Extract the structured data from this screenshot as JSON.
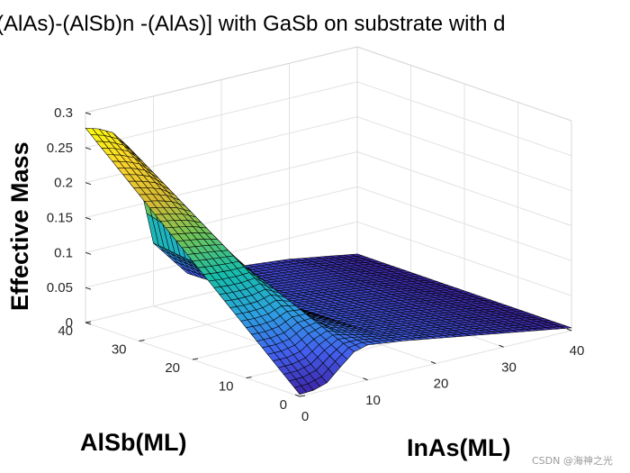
{
  "chart_data": {
    "type": "surface",
    "title": "(AlAs)-(AlSb)n -(AlAs)] with GaSb on substrate with d",
    "xlabel": "InAs(ML)",
    "ylabel": "AlSb(ML)",
    "zlabel": "Effective Mass",
    "xlim": [
      0,
      40
    ],
    "ylim": [
      0,
      40
    ],
    "zlim": [
      0,
      0.3
    ],
    "xticks": [
      "0",
      "10",
      "20",
      "30",
      "40"
    ],
    "yticks": [
      "0",
      "10",
      "20",
      "30",
      "40"
    ],
    "zticks": [
      "0",
      "0.05",
      "0.1",
      "0.15",
      "0.2",
      "0.25",
      "0.3"
    ],
    "grid": true,
    "colormap": "parula",
    "colormap_stops": [
      "#3e26a8",
      "#4361ee",
      "#2da1df",
      "#16bdab",
      "#6fc45a",
      "#d7ba35",
      "#fbd52c",
      "#f9fb0e"
    ],
    "series": [
      {
        "name": "Effective Mass surface",
        "x_samples": [
          0,
          2,
          4,
          6,
          8,
          10,
          15,
          20,
          25,
          30,
          35,
          40
        ],
        "z_at_y40": [
          0.278,
          0.272,
          0.262,
          0.24,
          0.18,
          0.09,
          0.035,
          0.029,
          0.025,
          0.02,
          0.012,
          0.004
        ],
        "z_at_y0": [
          0.003,
          0.004,
          0.01,
          0.028,
          0.045,
          0.05,
          0.044,
          0.036,
          0.028,
          0.02,
          0.012,
          0.004
        ]
      }
    ]
  },
  "watermark": "CSDN @海神之光"
}
